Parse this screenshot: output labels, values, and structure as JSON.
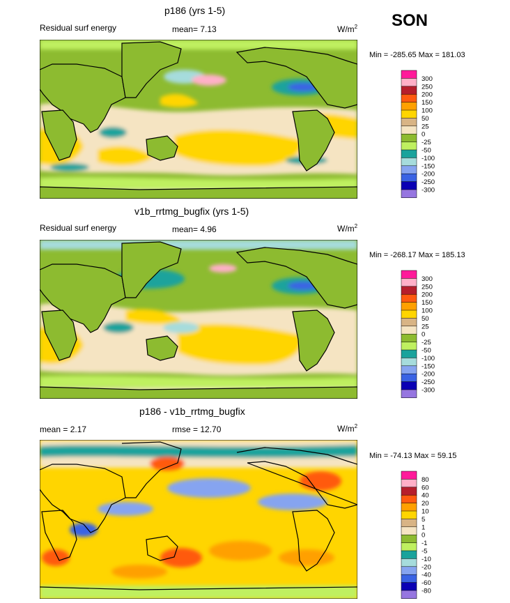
{
  "season": "SON",
  "panels": [
    {
      "title": "p186 (yrs 1-5)",
      "left_label": "Residual surf energy",
      "center_label": "mean=  7.13",
      "units": "W/m",
      "units_sup": "2",
      "minmax": "Min = -285.65 Max = 181.03",
      "colorbar": {
        "labels": [
          "300",
          "250",
          "200",
          "150",
          "100",
          "50",
          "25",
          "0",
          "-25",
          "-50",
          "-100",
          "-150",
          "-200",
          "-250",
          "-300"
        ],
        "colors": [
          "#ff1a9a",
          "#ffb0c8",
          "#b61e2c",
          "#ff5a10",
          "#ffa000",
          "#ffd500",
          "#d8b485",
          "#f5e4c2",
          "#8dbb30",
          "#bff060",
          "#1aa39c",
          "#a6dcdc",
          "#86a4f0",
          "#3a63e4",
          "#0a00b4",
          "#9676e0"
        ]
      },
      "stats": {
        "mean": 7.13,
        "min": -285.65,
        "max": 181.03
      }
    },
    {
      "title": "v1b_rrtmg_bugfix (yrs 1-5)",
      "left_label": "Residual surf energy",
      "center_label": "mean=   4.96",
      "units": "W/m",
      "units_sup": "2",
      "minmax": "Min = -268.17 Max = 185.13",
      "colorbar": {
        "labels": [
          "300",
          "250",
          "200",
          "150",
          "100",
          "50",
          "25",
          "0",
          "-25",
          "-50",
          "-100",
          "-150",
          "-200",
          "-250",
          "-300"
        ],
        "colors": [
          "#ff1a9a",
          "#ffb0c8",
          "#b61e2c",
          "#ff5a10",
          "#ffa000",
          "#ffd500",
          "#d8b485",
          "#f5e4c2",
          "#8dbb30",
          "#bff060",
          "#1aa39c",
          "#a6dcdc",
          "#86a4f0",
          "#3a63e4",
          "#0a00b4",
          "#9676e0"
        ]
      },
      "stats": {
        "mean": 4.96,
        "min": -268.17,
        "max": 185.13
      }
    },
    {
      "title": "p186 - v1b_rrtmg_bugfix",
      "left_label": "mean =   2.17",
      "center_label": "rmse =  12.70",
      "units": "W/m",
      "units_sup": "2",
      "minmax": "Min = -74.13 Max =  59.15",
      "colorbar": {
        "labels": [
          "80",
          "60",
          "40",
          "20",
          "10",
          "5",
          "1",
          "0",
          "-1",
          "-5",
          "-10",
          "-20",
          "-40",
          "-60",
          "-80"
        ],
        "colors": [
          "#ff1a9a",
          "#ffb0c8",
          "#b61e2c",
          "#ff5a10",
          "#ffa000",
          "#ffd500",
          "#d8b485",
          "#f5e4c2",
          "#8dbb30",
          "#bff060",
          "#1aa39c",
          "#a6dcdc",
          "#86a4f0",
          "#3a63e4",
          "#0a00b4",
          "#9676e0"
        ]
      },
      "stats": {
        "mean": 2.17,
        "rmse": 12.7,
        "min": -74.13,
        "max": 59.15
      }
    }
  ],
  "chart_data": [
    {
      "type": "heatmap",
      "title": "p186 (yrs 1-5)",
      "variable": "Residual surf energy",
      "units": "W/m2",
      "season": "SON",
      "mean": 7.13,
      "min": -285.65,
      "max": 181.03,
      "levels": [
        300,
        250,
        200,
        150,
        100,
        50,
        25,
        0,
        -25,
        -50,
        -100,
        -150,
        -200,
        -250,
        -300
      ]
    },
    {
      "type": "heatmap",
      "title": "v1b_rrtmg_bugfix (yrs 1-5)",
      "variable": "Residual surf energy",
      "units": "W/m2",
      "season": "SON",
      "mean": 4.96,
      "min": -268.17,
      "max": 185.13,
      "levels": [
        300,
        250,
        200,
        150,
        100,
        50,
        25,
        0,
        -25,
        -50,
        -100,
        -150,
        -200,
        -250,
        -300
      ]
    },
    {
      "type": "heatmap",
      "title": "p186 - v1b_rrtmg_bugfix",
      "units": "W/m2",
      "season": "SON",
      "mean": 2.17,
      "rmse": 12.7,
      "min": -74.13,
      "max": 59.15,
      "levels": [
        80,
        60,
        40,
        20,
        10,
        5,
        1,
        0,
        -1,
        -5,
        -10,
        -20,
        -40,
        -60,
        -80
      ]
    }
  ]
}
